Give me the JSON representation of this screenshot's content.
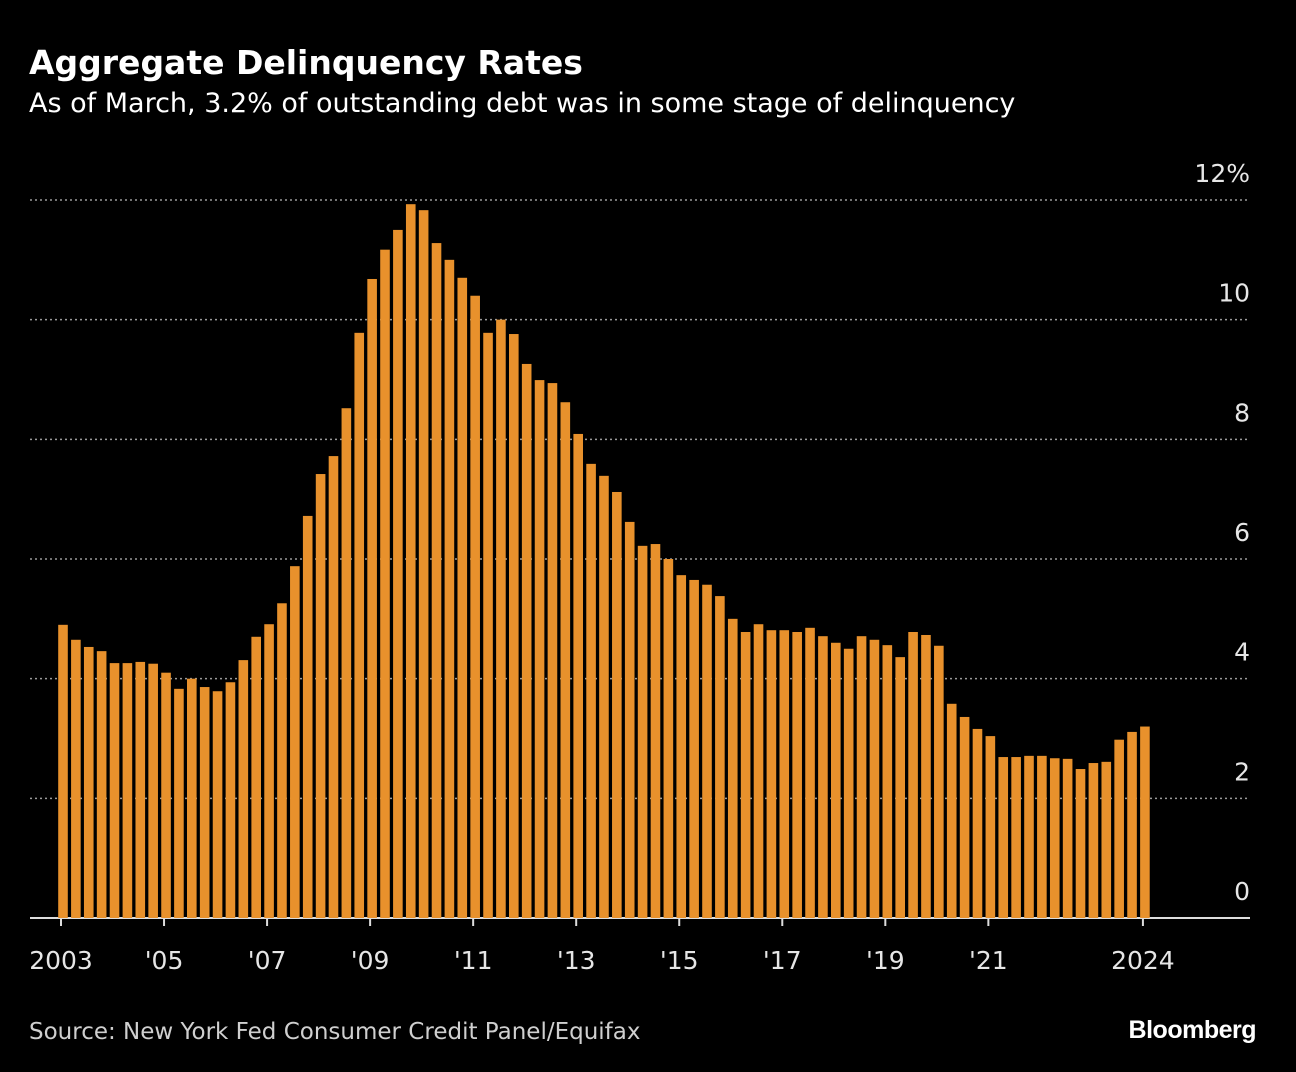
{
  "chart_data": {
    "type": "bar",
    "title": "Aggregate Delinquency Rates",
    "subtitle": "As of March, 3.2% of outstanding debt was in some stage of delinquency",
    "source": "Source: New York Fed Consumer Credit Panel/Equifax",
    "logo": "Bloomberg",
    "color": "#e8912c",
    "grid": true,
    "ylim": [
      0,
      12
    ],
    "yticks": [
      0,
      2,
      4,
      6,
      8,
      10,
      {
        "value": 12,
        "label": "12%"
      }
    ],
    "categories": [
      "2003",
      null,
      null,
      null,
      null,
      null,
      null,
      null,
      "'05",
      null,
      null,
      null,
      null,
      null,
      null,
      null,
      "'07",
      null,
      null,
      null,
      null,
      null,
      null,
      null,
      "'09",
      null,
      null,
      null,
      null,
      null,
      null,
      null,
      "'11",
      null,
      null,
      null,
      null,
      null,
      null,
      null,
      "'13",
      null,
      null,
      null,
      null,
      null,
      null,
      null,
      "'15",
      null,
      null,
      null,
      null,
      null,
      null,
      null,
      "'17",
      null,
      null,
      null,
      null,
      null,
      null,
      null,
      "'19",
      null,
      null,
      null,
      null,
      null,
      null,
      null,
      "'21",
      null,
      null,
      null,
      null,
      null,
      null,
      null,
      null,
      null,
      null,
      null,
      "2024"
    ],
    "values": [
      4.9,
      4.65,
      4.53,
      4.46,
      4.26,
      4.26,
      4.28,
      4.25,
      4.1,
      3.83,
      4.0,
      3.86,
      3.79,
      3.94,
      4.31,
      4.7,
      4.91,
      5.26,
      5.88,
      6.72,
      7.42,
      7.72,
      8.52,
      9.78,
      10.68,
      11.17,
      11.5,
      11.93,
      11.83,
      11.28,
      11.0,
      10.7,
      10.4,
      9.78,
      10.0,
      9.76,
      9.26,
      8.99,
      8.94,
      8.62,
      8.09,
      7.59,
      7.39,
      7.12,
      6.62,
      6.22,
      6.25,
      6.0,
      5.73,
      5.65,
      5.57,
      5.38,
      5.0,
      4.78,
      4.91,
      4.81,
      4.81,
      4.78,
      4.85,
      4.71,
      4.6,
      4.5,
      4.71,
      4.65,
      4.56,
      4.36,
      4.78,
      4.73,
      4.55,
      3.58,
      3.36,
      3.16,
      3.04,
      2.69,
      2.69,
      2.71,
      2.71,
      2.67,
      2.66,
      2.49,
      2.59,
      2.61,
      2.98,
      3.11,
      3.2
    ]
  }
}
